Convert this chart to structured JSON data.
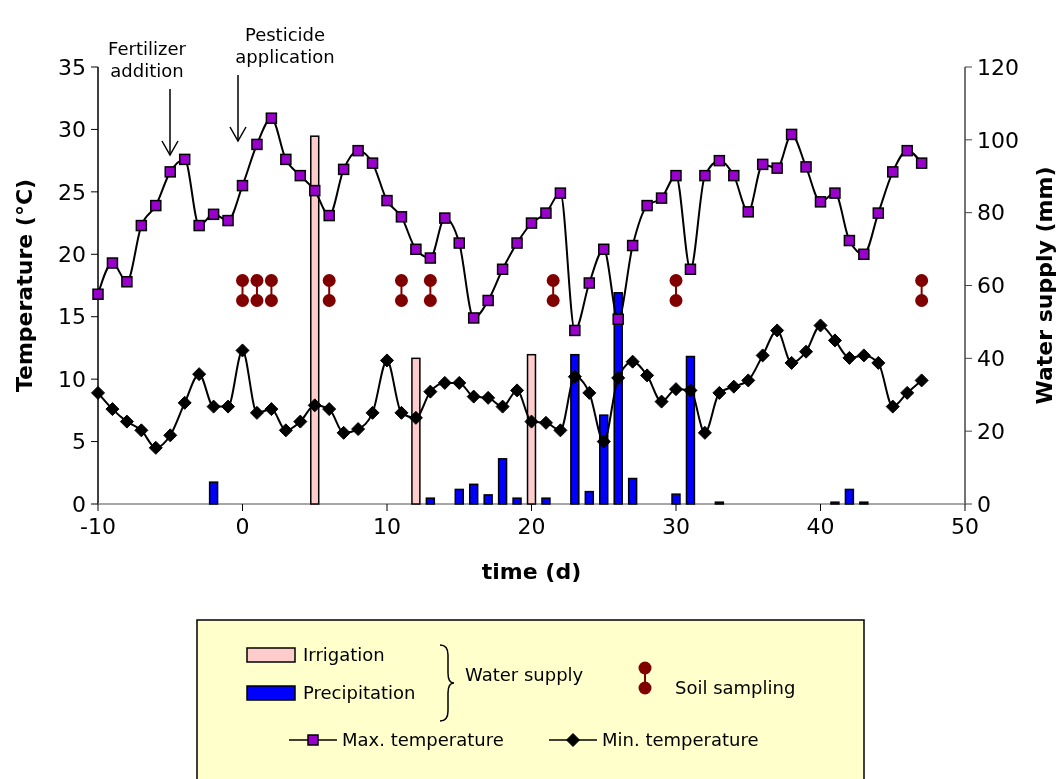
{
  "chart_data": {
    "type": "line",
    "xlabel": "time (d)",
    "ylabel": "Temperature (°C)",
    "y2label": "Water supply (mm)",
    "xlim": [
      -10,
      50
    ],
    "xticks": [
      -10,
      0,
      10,
      20,
      30,
      40,
      50
    ],
    "ylim": [
      0,
      35
    ],
    "yticks": [
      0,
      5,
      10,
      15,
      20,
      25,
      30,
      35
    ],
    "y2lim": [
      0,
      120
    ],
    "y2ticks": [
      0,
      20,
      40,
      60,
      80,
      100,
      120
    ],
    "legend": "bottom",
    "legend_title": "Water supply",
    "annotations": [
      "Fertilizer addition",
      "Pesticide application"
    ],
    "series": [
      {
        "name": "Irrigation",
        "type": "bar",
        "axis": "y2",
        "color": "#ffcccc",
        "x": [
          5,
          12,
          20
        ],
        "values": [
          101,
          40,
          41
        ]
      },
      {
        "name": "Precipitation",
        "type": "bar",
        "axis": "y2",
        "color": "#0000ff",
        "x": [
          -2,
          13,
          15,
          16,
          17,
          18,
          19,
          21,
          23,
          24,
          25,
          26,
          27,
          30,
          31,
          33,
          41,
          42,
          43
        ],
        "values": [
          6,
          1.6,
          4,
          5.4,
          2.5,
          12.4,
          1.6,
          1.6,
          41,
          3.4,
          24.4,
          58,
          7,
          2.7,
          40.5,
          0.5,
          0.5,
          4,
          0.5
        ]
      },
      {
        "name": "Max. temperature",
        "color": "#9900cc",
        "marker": "square",
        "x": [
          -10,
          -9,
          -8,
          -7,
          -6,
          -5,
          -4,
          -3,
          -2,
          -1,
          0,
          1,
          2,
          3,
          4,
          5,
          6,
          7,
          8,
          9,
          10,
          11,
          12,
          13,
          14,
          15,
          16,
          17,
          18,
          19,
          20,
          21,
          22,
          23,
          24,
          25,
          26,
          27,
          28,
          29,
          30,
          31,
          32,
          33,
          34,
          35,
          36,
          37,
          38,
          39,
          40,
          41,
          42,
          43,
          44,
          45,
          46,
          47
        ],
        "values": [
          16.8,
          19.3,
          17.8,
          22.3,
          23.9,
          26.6,
          27.6,
          22.3,
          23.2,
          22.7,
          25.5,
          28.8,
          30.9,
          27.6,
          26.3,
          25.1,
          23.1,
          26.8,
          28.3,
          27.3,
          24.3,
          23.0,
          20.4,
          19.7,
          22.9,
          20.9,
          14.9,
          16.3,
          18.8,
          20.9,
          22.5,
          23.3,
          24.9,
          13.9,
          17.7,
          20.4,
          14.8,
          20.7,
          23.9,
          24.5,
          26.3,
          18.8,
          26.3,
          27.5,
          26.3,
          23.4,
          27.2,
          26.9,
          29.6,
          27.0,
          24.2,
          24.9,
          21.1,
          20.0,
          23.3,
          26.6,
          28.3,
          27.3
        ]
      },
      {
        "name": "Min. temperature",
        "color": "#000000",
        "marker": "diamond",
        "x": [
          -10,
          -9,
          -8,
          -7,
          -6,
          -5,
          -4,
          -3,
          -2,
          -1,
          0,
          1,
          2,
          3,
          4,
          5,
          6,
          7,
          8,
          9,
          10,
          11,
          12,
          13,
          14,
          15,
          16,
          17,
          18,
          19,
          20,
          21,
          22,
          23,
          24,
          25,
          26,
          27,
          28,
          29,
          30,
          31,
          32,
          33,
          34,
          35,
          36,
          37,
          38,
          39,
          40,
          41,
          42,
          43,
          44,
          45,
          46,
          47
        ],
        "values": [
          8.9,
          7.6,
          6.6,
          5.9,
          4.5,
          5.5,
          8.1,
          10.4,
          7.8,
          7.8,
          12.3,
          7.3,
          7.6,
          5.9,
          6.6,
          7.9,
          7.6,
          5.7,
          6.0,
          7.3,
          11.5,
          7.3,
          6.9,
          9.0,
          9.7,
          9.7,
          8.6,
          8.5,
          7.8,
          9.1,
          6.6,
          6.5,
          5.9,
          10.2,
          8.9,
          5.0,
          10.1,
          11.4,
          10.3,
          8.2,
          9.2,
          9.1,
          5.7,
          8.9,
          9.4,
          9.9,
          11.9,
          13.9,
          11.3,
          12.2,
          14.3,
          13.1,
          11.7,
          11.9,
          11.3,
          7.8,
          8.9,
          9.9
        ]
      },
      {
        "name": "Soil sampling",
        "type": "scatter",
        "color": "#800000",
        "marker": "circle",
        "x": [
          0,
          0,
          1,
          1,
          2,
          2,
          6,
          6,
          11,
          11,
          13,
          13,
          21.5,
          21.5,
          30,
          30,
          47,
          47
        ],
        "values": [
          17.9,
          16.3,
          17.9,
          16.3,
          17.9,
          16.3,
          17.9,
          16.3,
          17.9,
          16.3,
          17.9,
          16.3,
          17.9,
          16.3,
          17.9,
          16.3,
          17.9,
          16.3
        ]
      }
    ]
  }
}
